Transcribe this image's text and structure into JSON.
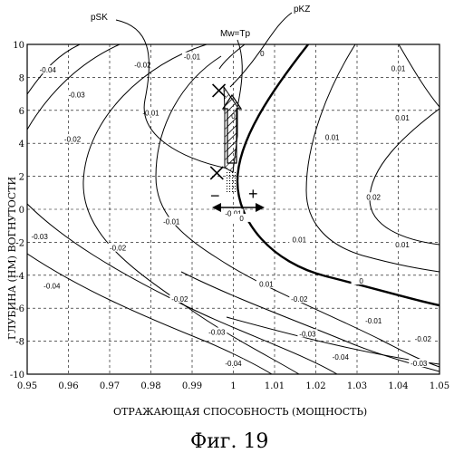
{
  "chart_data": {
    "type": "line",
    "xlabel": "ОТРАЖАЮЩАЯ СПОСОБНОСТЬ (МОЩНОСТЬ)",
    "ylabel": "ГЛУБИНА (НМ) ВОГНУТОСТИ",
    "xlim": [
      0.95,
      1.05
    ],
    "ylim": [
      -10,
      10
    ],
    "x_ticks": [
      "0.95",
      "0.96",
      "0.97",
      "0.98",
      "0.99",
      "1",
      "1.01",
      "1.02",
      "1.03",
      "1.04",
      "1.05"
    ],
    "y_ticks": [
      "10",
      "8",
      "6",
      "4",
      "2",
      "0",
      "-2",
      "-4",
      "-6",
      "-8",
      "-10"
    ],
    "grid": true,
    "contour_levels": [
      -0.04,
      -0.03,
      -0.02,
      -0.01,
      0,
      0.01,
      0.02
    ],
    "contour_labels": [
      {
        "text": "-0.04",
        "x": 0.955,
        "y": 8.4
      },
      {
        "text": "-0.03",
        "x": 0.962,
        "y": 6.9
      },
      {
        "text": "-0.02",
        "x": 0.978,
        "y": 8.7
      },
      {
        "text": "-0.02",
        "x": 0.961,
        "y": 4.2
      },
      {
        "text": "-0.01",
        "x": 0.98,
        "y": 5.8
      },
      {
        "text": "-0.01",
        "x": 0.99,
        "y": 9.2
      },
      {
        "text": "-0.01",
        "x": 0.985,
        "y": -0.8
      },
      {
        "text": "-0.01",
        "x": 1.0,
        "y": -0.3
      },
      {
        "text": "0",
        "x": 1.007,
        "y": 9.4
      },
      {
        "text": "0",
        "x": 1.0,
        "y": 5.6
      },
      {
        "text": "0",
        "x": 1.002,
        "y": -0.6
      },
      {
        "text": "0",
        "x": 1.031,
        "y": -4.4
      },
      {
        "text": "-0.02",
        "x": 0.972,
        "y": -2.4
      },
      {
        "text": "-0.03",
        "x": 0.953,
        "y": -1.7
      },
      {
        "text": "-0.04",
        "x": 0.956,
        "y": -4.7
      },
      {
        "text": "-0.02",
        "x": 0.987,
        "y": -5.5
      },
      {
        "text": "-0.03",
        "x": 0.996,
        "y": -7.5
      },
      {
        "text": "-0.04",
        "x": 1.0,
        "y": -9.4
      },
      {
        "text": "-0.02",
        "x": 1.016,
        "y": -5.5
      },
      {
        "text": "-0.03",
        "x": 1.018,
        "y": -7.6
      },
      {
        "text": "-0.04",
        "x": 1.026,
        "y": -9.0
      },
      {
        "text": "-0.01",
        "x": 1.034,
        "y": -6.8
      },
      {
        "text": "-0.02",
        "x": 1.046,
        "y": -7.9
      },
      {
        "text": "-0.03",
        "x": 1.045,
        "y": -9.4
      },
      {
        "text": "0.01",
        "x": 1.008,
        "y": -4.6
      },
      {
        "text": "0.01",
        "x": 1.024,
        "y": 4.3
      },
      {
        "text": "0.01",
        "x": 1.041,
        "y": 5.5
      },
      {
        "text": "0.01",
        "x": 1.016,
        "y": -1.9
      },
      {
        "text": "0.01",
        "x": 1.04,
        "y": 8.5
      },
      {
        "text": "0.01",
        "x": 1.041,
        "y": -2.2
      },
      {
        "text": "0.02",
        "x": 1.034,
        "y": 0.7
      }
    ],
    "annotations": {
      "pSK": {
        "label": "pSK",
        "x": 0.996,
        "y": 2.2
      },
      "pKZ": {
        "label": "pKZ",
        "x": 0.9965,
        "y": 7.2
      },
      "mw_tp": {
        "label": "Mw=Tp"
      },
      "minus": {
        "label": "−"
      },
      "plus": {
        "label": "+"
      }
    }
  },
  "figure": {
    "caption": "Фиг. 19"
  }
}
